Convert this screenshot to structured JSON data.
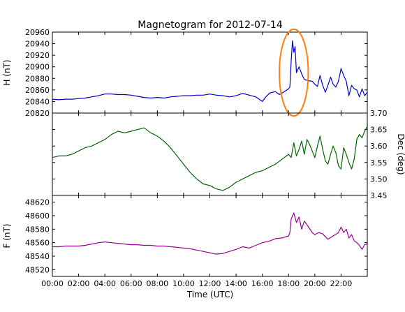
{
  "chart_data": [
    {
      "type": "line",
      "title": "Magnetogram for 2012-07-14",
      "xlabel": "",
      "ylabel": "H (nT)",
      "ylim": [
        20820,
        20960
      ],
      "xlim": [
        0,
        24
      ],
      "yticks": [
        20820,
        20840,
        20860,
        20880,
        20900,
        20920,
        20940,
        20960
      ],
      "grid": false,
      "series": [
        {
          "color": "#0000cc",
          "x": [
            0,
            0.5,
            1,
            1.5,
            2,
            2.5,
            3,
            3.5,
            4,
            4.5,
            5,
            5.5,
            6,
            6.5,
            7,
            7.5,
            8,
            8.5,
            9,
            9.5,
            10,
            10.5,
            11,
            11.5,
            12,
            12.5,
            13,
            13.5,
            14,
            14.5,
            15,
            15.5,
            16,
            16.3,
            16.6,
            17,
            17.3,
            17.6,
            18,
            18.1,
            18.2,
            18.3,
            18.4,
            18.5,
            18.6,
            18.8,
            19,
            19.2,
            19.5,
            19.8,
            20,
            20.2,
            20.4,
            20.6,
            20.8,
            21,
            21.2,
            21.4,
            21.6,
            21.8,
            22,
            22.2,
            22.4,
            22.6,
            22.8,
            23,
            23.2,
            23.4,
            23.6,
            23.8,
            24
          ],
          "values": [
            20844,
            20843,
            20844,
            20844,
            20845,
            20846,
            20848,
            20850,
            20853,
            20853,
            20852,
            20852,
            20851,
            20849,
            20847,
            20846,
            20847,
            20846,
            20848,
            20849,
            20850,
            20850,
            20851,
            20851,
            20853,
            20851,
            20850,
            20848,
            20850,
            20854,
            20851,
            20848,
            20840,
            20849,
            20855,
            20857,
            20852,
            20856,
            20862,
            20865,
            20910,
            20945,
            20925,
            20935,
            20890,
            20900,
            20888,
            20878,
            20876,
            20875,
            20870,
            20866,
            20885,
            20868,
            20856,
            20868,
            20882,
            20870,
            20865,
            20875,
            20897,
            20885,
            20875,
            20850,
            20868,
            20862,
            20860,
            20848,
            20862,
            20850,
            20856
          ]
        }
      ],
      "annotations": [
        {
          "shape": "ellipse",
          "color": "#ff7f0e",
          "x_center": 18.4,
          "y_center": 20890,
          "x_radius": 1.1,
          "y_radius": 75
        }
      ]
    },
    {
      "type": "line",
      "xlabel": "",
      "ylabel": "Dec (deg)",
      "ylim": [
        3.45,
        3.7
      ],
      "xlim": [
        0,
        24
      ],
      "yticks": [
        3.45,
        3.5,
        3.55,
        3.6,
        3.65,
        3.7
      ],
      "yaxis_side": "right",
      "grid": false,
      "series": [
        {
          "color": "#006600",
          "x": [
            0,
            0.5,
            1,
            1.5,
            2,
            2.5,
            3,
            3.5,
            4,
            4.5,
            5,
            5.5,
            6,
            6.5,
            7,
            7.5,
            8,
            8.5,
            9,
            9.5,
            10,
            10.5,
            11,
            11.5,
            12,
            12.5,
            13,
            13.5,
            14,
            14.5,
            15,
            15.5,
            16,
            16.5,
            17,
            17.5,
            18,
            18.2,
            18.4,
            18.6,
            18.8,
            19,
            19.2,
            19.4,
            19.6,
            19.8,
            20,
            20.2,
            20.4,
            20.6,
            20.8,
            21,
            21.2,
            21.4,
            21.6,
            21.8,
            22,
            22.2,
            22.4,
            22.6,
            22.8,
            23,
            23.2,
            23.4,
            23.6,
            23.8,
            24
          ],
          "values": [
            3.565,
            3.57,
            3.57,
            3.575,
            3.585,
            3.595,
            3.6,
            3.61,
            3.62,
            3.635,
            3.645,
            3.64,
            3.645,
            3.65,
            3.655,
            3.64,
            3.63,
            3.615,
            3.595,
            3.57,
            3.545,
            3.52,
            3.5,
            3.485,
            3.48,
            3.47,
            3.465,
            3.475,
            3.49,
            3.5,
            3.51,
            3.52,
            3.525,
            3.535,
            3.545,
            3.56,
            3.575,
            3.565,
            3.61,
            3.57,
            3.59,
            3.615,
            3.575,
            3.62,
            3.605,
            3.585,
            3.565,
            3.6,
            3.63,
            3.59,
            3.555,
            3.545,
            3.575,
            3.6,
            3.58,
            3.54,
            3.53,
            3.595,
            3.575,
            3.55,
            3.53,
            3.56,
            3.62,
            3.635,
            3.625,
            3.645,
            3.66
          ]
        }
      ]
    },
    {
      "type": "line",
      "xlabel": "Time (UTC)",
      "ylabel": "F (nT)",
      "ylim": [
        48510,
        48630
      ],
      "xlim": [
        0,
        24
      ],
      "yticks": [
        48520,
        48540,
        48560,
        48580,
        48600,
        48620
      ],
      "xticks": [
        0,
        2,
        4,
        6,
        8,
        10,
        12,
        14,
        16,
        18,
        20,
        22
      ],
      "xticklabels": [
        "00:00",
        "02:00",
        "04:00",
        "06:00",
        "08:00",
        "10:00",
        "12:00",
        "14:00",
        "16:00",
        "18:00",
        "20:00",
        "22:00"
      ],
      "grid": false,
      "series": [
        {
          "color": "#990099",
          "x": [
            0,
            0.5,
            1,
            1.5,
            2,
            2.5,
            3,
            3.5,
            4,
            4.5,
            5,
            5.5,
            6,
            6.5,
            7,
            7.5,
            8,
            8.5,
            9,
            9.5,
            10,
            10.5,
            11,
            11.5,
            12,
            12.5,
            13,
            13.5,
            14,
            14.5,
            15,
            15.5,
            16,
            16.5,
            17,
            17.5,
            18,
            18.1,
            18.2,
            18.4,
            18.6,
            18.8,
            19,
            19.2,
            19.5,
            19.8,
            20,
            20.3,
            20.6,
            21,
            21.4,
            21.8,
            22,
            22.2,
            22.4,
            22.6,
            22.8,
            23,
            23.2,
            23.4,
            23.6,
            23.8,
            24
          ],
          "values": [
            48554,
            48554,
            48555,
            48555,
            48555,
            48556,
            48558,
            48560,
            48561,
            48560,
            48559,
            48558,
            48557,
            48557,
            48556,
            48556,
            48555,
            48555,
            48554,
            48553,
            48552,
            48551,
            48549,
            48547,
            48545,
            48543,
            48544,
            48547,
            48550,
            48554,
            48552,
            48556,
            48560,
            48562,
            48566,
            48567,
            48570,
            48575,
            48595,
            48604,
            48590,
            48598,
            48580,
            48592,
            48584,
            48575,
            48572,
            48575,
            48573,
            48565,
            48570,
            48575,
            48583,
            48575,
            48580,
            48567,
            48572,
            48563,
            48560,
            48556,
            48550,
            48557,
            48558
          ]
        }
      ]
    }
  ]
}
